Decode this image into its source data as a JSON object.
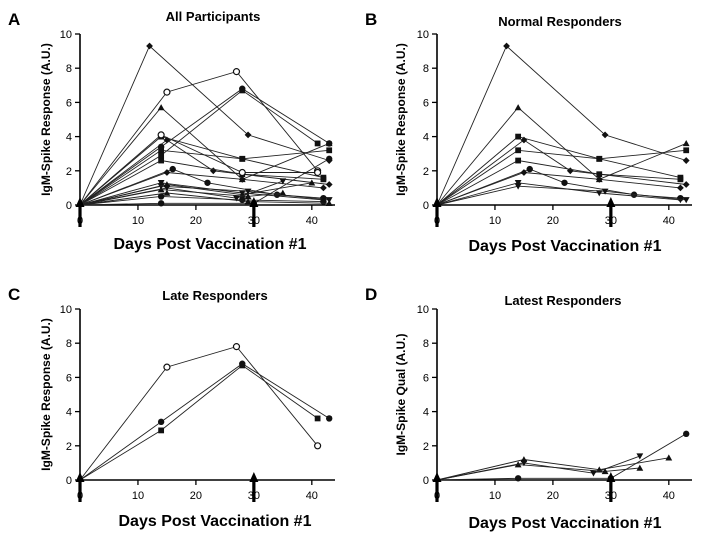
{
  "chart_data": [
    {
      "panel": "A",
      "title": "All Participants",
      "type": "line",
      "xlabel": "Days Post Vaccination #1",
      "ylabel": "IgM-Spike Response (A.U.)",
      "xlim": [
        0,
        44
      ],
      "ylim": [
        0,
        10
      ],
      "xticks": [
        "0",
        "10",
        "20",
        "30",
        "40"
      ],
      "yticks": [
        "0",
        "2",
        "4",
        "6",
        "8",
        "10"
      ],
      "arrows_at_x": [
        0,
        30
      ],
      "series": [
        {
          "marker": "diamond",
          "x": [
            0,
            12,
            29,
            43
          ],
          "y": [
            0,
            9.3,
            4.1,
            2.6
          ]
        },
        {
          "marker": "triangle",
          "x": [
            0,
            14,
            28,
            43
          ],
          "y": [
            0,
            5.7,
            1.5,
            3.6
          ]
        },
        {
          "marker": "square",
          "x": [
            0,
            14,
            28,
            42
          ],
          "y": [
            0,
            4.0,
            2.7,
            1.6
          ]
        },
        {
          "marker": "square",
          "x": [
            0,
            14,
            28,
            43
          ],
          "y": [
            0,
            3.2,
            2.7,
            3.2
          ]
        },
        {
          "marker": "diamond",
          "x": [
            0,
            15,
            23,
            43
          ],
          "y": [
            0,
            3.8,
            2.0,
            1.2
          ]
        },
        {
          "marker": "square",
          "x": [
            0,
            14,
            28,
            42
          ],
          "y": [
            0,
            2.6,
            1.8,
            1.5
          ]
        },
        {
          "marker": "circle",
          "x": [
            0,
            16,
            22,
            34,
            42
          ],
          "y": [
            0,
            2.1,
            1.3,
            0.6,
            0.4
          ]
        },
        {
          "marker": "diamond",
          "x": [
            0,
            15,
            28,
            42
          ],
          "y": [
            0,
            1.9,
            1.5,
            1.0
          ]
        },
        {
          "marker": "triangle-down",
          "x": [
            0,
            14,
            28,
            42
          ],
          "y": [
            0,
            1.3,
            0.7,
            0.3
          ]
        },
        {
          "marker": "triangle-down",
          "x": [
            0,
            14,
            29,
            43
          ],
          "y": [
            0,
            1.1,
            0.8,
            0.3
          ]
        },
        {
          "marker": "open-circle",
          "x": [
            0,
            15,
            27,
            41
          ],
          "y": [
            0,
            6.6,
            7.8,
            2.0
          ]
        },
        {
          "marker": "circle",
          "x": [
            0,
            14,
            28,
            43
          ],
          "y": [
            0,
            3.4,
            6.8,
            3.6
          ]
        },
        {
          "marker": "square",
          "x": [
            0,
            14,
            28,
            41
          ],
          "y": [
            0,
            2.9,
            6.7,
            3.6
          ]
        },
        {
          "marker": "triangle",
          "x": [
            0,
            15,
            28,
            40
          ],
          "y": [
            0,
            1.2,
            0.6,
            1.3
          ]
        },
        {
          "marker": "triangle",
          "x": [
            0,
            14,
            29,
            35
          ],
          "y": [
            0,
            0.9,
            0.5,
            0.7
          ]
        },
        {
          "marker": "circle",
          "x": [
            0,
            14,
            30,
            43
          ],
          "y": [
            0,
            0.1,
            0.1,
            2.7
          ]
        },
        {
          "marker": "triangle-down",
          "x": [
            0,
            15,
            27,
            35
          ],
          "y": [
            0,
            1.0,
            0.4,
            1.4
          ]
        },
        {
          "marker": "open-circle",
          "x": [
            0,
            14,
            28,
            41
          ],
          "y": [
            0,
            4.1,
            1.9,
            1.9
          ]
        },
        {
          "marker": "circle",
          "x": [
            0,
            14,
            28,
            42
          ],
          "y": [
            0,
            0.5,
            0.3,
            0.2
          ]
        },
        {
          "marker": "triangle",
          "x": [
            0,
            15,
            29,
            43
          ],
          "y": [
            0,
            0.7,
            0.2,
            0.1
          ]
        }
      ]
    },
    {
      "panel": "B",
      "title": "Normal Responders",
      "type": "line",
      "xlabel": "Days Post Vaccination #1",
      "ylabel": "IgM-Spike Response (A.U.)",
      "xlim": [
        0,
        44
      ],
      "ylim": [
        0,
        10
      ],
      "xticks": [
        "0",
        "10",
        "20",
        "30",
        "40"
      ],
      "yticks": [
        "0",
        "2",
        "4",
        "6",
        "8",
        "10"
      ],
      "arrows_at_x": [
        0,
        30
      ],
      "series": [
        {
          "marker": "diamond",
          "x": [
            0,
            12,
            29,
            43
          ],
          "y": [
            0,
            9.3,
            4.1,
            2.6
          ]
        },
        {
          "marker": "triangle",
          "x": [
            0,
            14,
            28,
            43
          ],
          "y": [
            0,
            5.7,
            1.5,
            3.6
          ]
        },
        {
          "marker": "square",
          "x": [
            0,
            14,
            28,
            42
          ],
          "y": [
            0,
            4.0,
            2.7,
            1.6
          ]
        },
        {
          "marker": "square",
          "x": [
            0,
            14,
            28,
            43
          ],
          "y": [
            0,
            3.2,
            2.7,
            3.2
          ]
        },
        {
          "marker": "diamond",
          "x": [
            0,
            15,
            23,
            43
          ],
          "y": [
            0,
            3.8,
            2.0,
            1.2
          ]
        },
        {
          "marker": "square",
          "x": [
            0,
            14,
            28,
            42
          ],
          "y": [
            0,
            2.6,
            1.8,
            1.5
          ]
        },
        {
          "marker": "circle",
          "x": [
            0,
            16,
            22,
            34,
            42
          ],
          "y": [
            0,
            2.1,
            1.3,
            0.6,
            0.4
          ]
        },
        {
          "marker": "diamond",
          "x": [
            0,
            15,
            28,
            42
          ],
          "y": [
            0,
            1.9,
            1.5,
            1.0
          ]
        },
        {
          "marker": "triangle-down",
          "x": [
            0,
            14,
            28,
            42
          ],
          "y": [
            0,
            1.3,
            0.7,
            0.3
          ]
        },
        {
          "marker": "triangle-down",
          "x": [
            0,
            14,
            29,
            43
          ],
          "y": [
            0,
            1.1,
            0.8,
            0.3
          ]
        }
      ]
    },
    {
      "panel": "C",
      "title": "Late Responders",
      "type": "line",
      "xlabel": "Days Post Vaccination #1",
      "ylabel": "IgM-Spike Response (A.U.)",
      "xlim": [
        0,
        44
      ],
      "ylim": [
        0,
        10
      ],
      "xticks": [
        "0",
        "10",
        "20",
        "30",
        "40"
      ],
      "yticks": [
        "0",
        "2",
        "4",
        "6",
        "8",
        "10"
      ],
      "arrows_at_x": [
        0,
        30
      ],
      "series": [
        {
          "marker": "open-circle",
          "x": [
            0,
            15,
            27,
            41
          ],
          "y": [
            0,
            6.6,
            7.8,
            2.0
          ]
        },
        {
          "marker": "circle",
          "x": [
            0,
            14,
            28,
            43
          ],
          "y": [
            0,
            3.4,
            6.8,
            3.6
          ]
        },
        {
          "marker": "square",
          "x": [
            0,
            14,
            28,
            41
          ],
          "y": [
            0,
            2.9,
            6.7,
            3.6
          ]
        }
      ]
    },
    {
      "panel": "D",
      "title": "Latest Responders",
      "type": "line",
      "xlabel": "Days  Post  Vaccination #1",
      "ylabel": "IgM-Spike Qual (A.U.)",
      "xlim": [
        0,
        44
      ],
      "ylim": [
        0,
        10
      ],
      "xticks": [
        "0",
        "10",
        "20",
        "30",
        "40"
      ],
      "yticks": [
        "0",
        "2",
        "4",
        "6",
        "8",
        "10"
      ],
      "arrows_at_x": [
        0,
        30
      ],
      "series": [
        {
          "marker": "triangle",
          "x": [
            0,
            15,
            28,
            40
          ],
          "y": [
            0,
            1.2,
            0.6,
            1.3
          ]
        },
        {
          "marker": "triangle",
          "x": [
            0,
            14,
            29,
            35
          ],
          "y": [
            0,
            0.9,
            0.5,
            0.7
          ]
        },
        {
          "marker": "circle",
          "x": [
            0,
            14,
            30,
            43
          ],
          "y": [
            0,
            0.1,
            0.1,
            2.7
          ]
        },
        {
          "marker": "triangle-down",
          "x": [
            0,
            15,
            27,
            35
          ],
          "y": [
            0,
            1.0,
            0.4,
            1.4
          ]
        }
      ]
    }
  ]
}
